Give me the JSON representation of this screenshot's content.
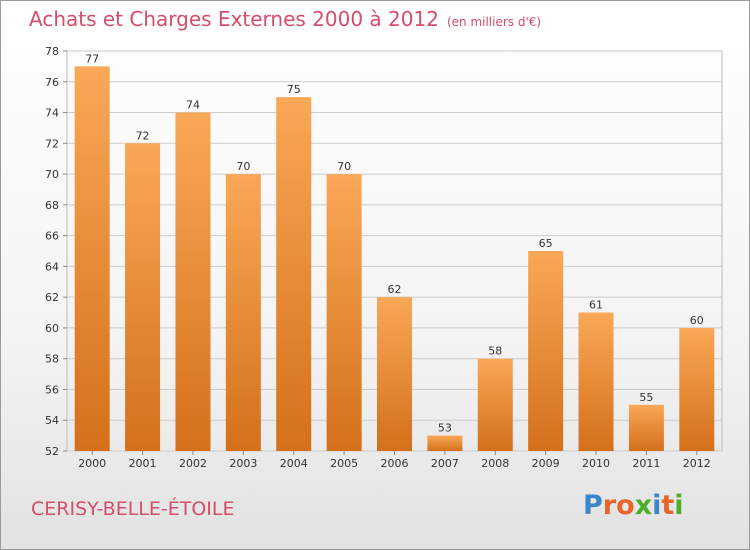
{
  "header": {
    "title": "Achats et Charges Externes 2000 à 2012",
    "unit": "(en milliers d'€)"
  },
  "footer": {
    "commune": "CERISY-BELLE-ÉTOILE",
    "logo_text": "Proxiti"
  },
  "colors": {
    "bar_top": "#f9a857",
    "bar_bottom": "#d4701a",
    "title": "#d44d6b",
    "logo": [
      "#3a86c8",
      "#e8642a",
      "#e8642a",
      "#4caf2a",
      "#3a86c8",
      "#e8642a",
      "#4caf2a"
    ]
  },
  "chart_data": {
    "type": "bar",
    "title": "Achats et Charges Externes 2000 à 2012",
    "subtitle": "(en milliers d'€)",
    "categories": [
      "2000",
      "2001",
      "2002",
      "2003",
      "2004",
      "2005",
      "2006",
      "2007",
      "2008",
      "2009",
      "2010",
      "2011",
      "2012"
    ],
    "values": [
      77,
      72,
      74,
      70,
      75,
      70,
      62,
      53,
      58,
      65,
      61,
      55,
      60
    ],
    "data_labels": [
      "77",
      "72",
      "74",
      "70",
      "75",
      "70",
      "62",
      "53",
      "58",
      "65",
      "61",
      "55",
      "60"
    ],
    "ylim": [
      52,
      78
    ],
    "yticks": [
      "52",
      "54",
      "56",
      "58",
      "60",
      "62",
      "64",
      "66",
      "68",
      "70",
      "72",
      "74",
      "76",
      "78"
    ],
    "xlabel": "",
    "ylabel": "",
    "grid": true
  }
}
